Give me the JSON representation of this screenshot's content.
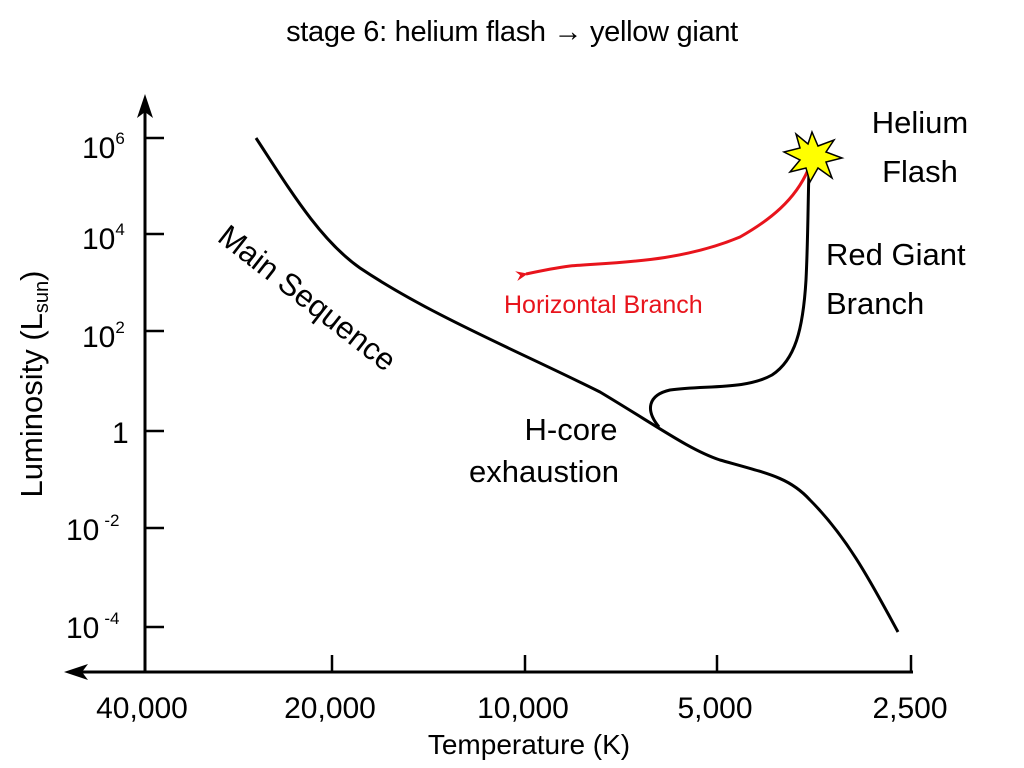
{
  "title": "stage 6: helium flash → yellow giant",
  "axes": {
    "y_label": "Luminosity (L",
    "y_label_sub": "sun",
    "y_label_close": ")",
    "x_label": "Temperature (K)",
    "y_ticks": [
      {
        "base": "10",
        "exp": "6"
      },
      {
        "base": "10",
        "exp": "4"
      },
      {
        "base": "10",
        "exp": "2"
      },
      {
        "base": "1",
        "exp": ""
      },
      {
        "base": "10",
        "exp": "-2"
      },
      {
        "base": "10",
        "exp": "-4"
      }
    ],
    "x_ticks": [
      "40,000",
      "20,000",
      "10,000",
      "5,000",
      "2,500"
    ]
  },
  "labels": {
    "main_sequence": "Main Sequence",
    "helium_line1": "Helium",
    "helium_line2": "Flash",
    "red_giant_line1": "Red Giant",
    "red_giant_line2": "Branch",
    "horizontal_branch": "Horizontal Branch",
    "hcore_line1": "H-core",
    "hcore_line2": "exhaustion"
  },
  "colors": {
    "track": "#000000",
    "horizontal_branch": "#e8141c",
    "flash_fill": "#ffff00",
    "flash_stroke": "#000000"
  }
}
